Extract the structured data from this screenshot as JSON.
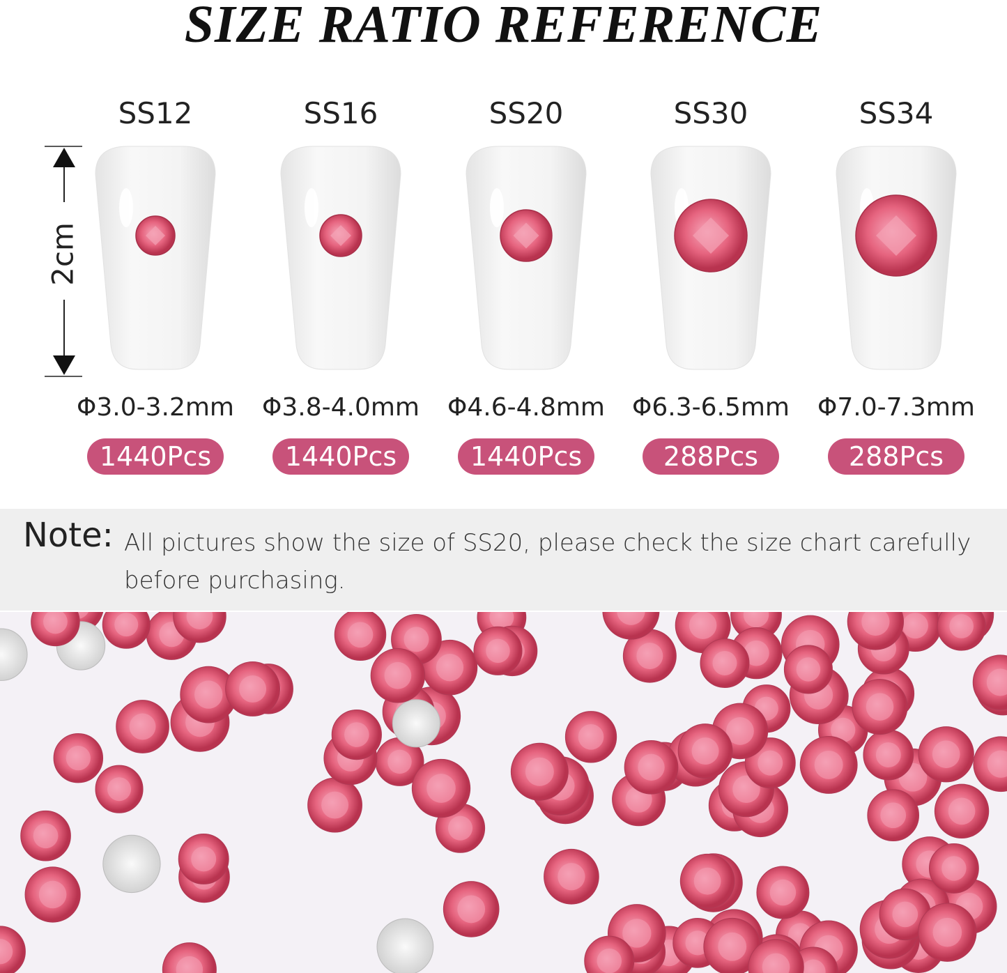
{
  "header": {
    "title": "SIZE RATIO REFERENCE"
  },
  "scale": {
    "label": "2cm"
  },
  "sizes": [
    {
      "name": "SS12",
      "diameter": "Φ3.0-3.2mm",
      "count": "1440Pcs"
    },
    {
      "name": "SS16",
      "diameter": "Φ3.8-4.0mm",
      "count": "1440Pcs"
    },
    {
      "name": "SS20",
      "diameter": "Φ4.6-4.8mm",
      "count": "1440Pcs"
    },
    {
      "name": "SS30",
      "diameter": "Φ6.3-6.5mm",
      "count": "288Pcs"
    },
    {
      "name": "SS34",
      "diameter": "Φ7.0-7.3mm",
      "count": "288Pcs"
    }
  ],
  "note": {
    "label": "Note:",
    "text": "All pictures show the size of SS20, please check the size chart carefully before purchasing."
  }
}
